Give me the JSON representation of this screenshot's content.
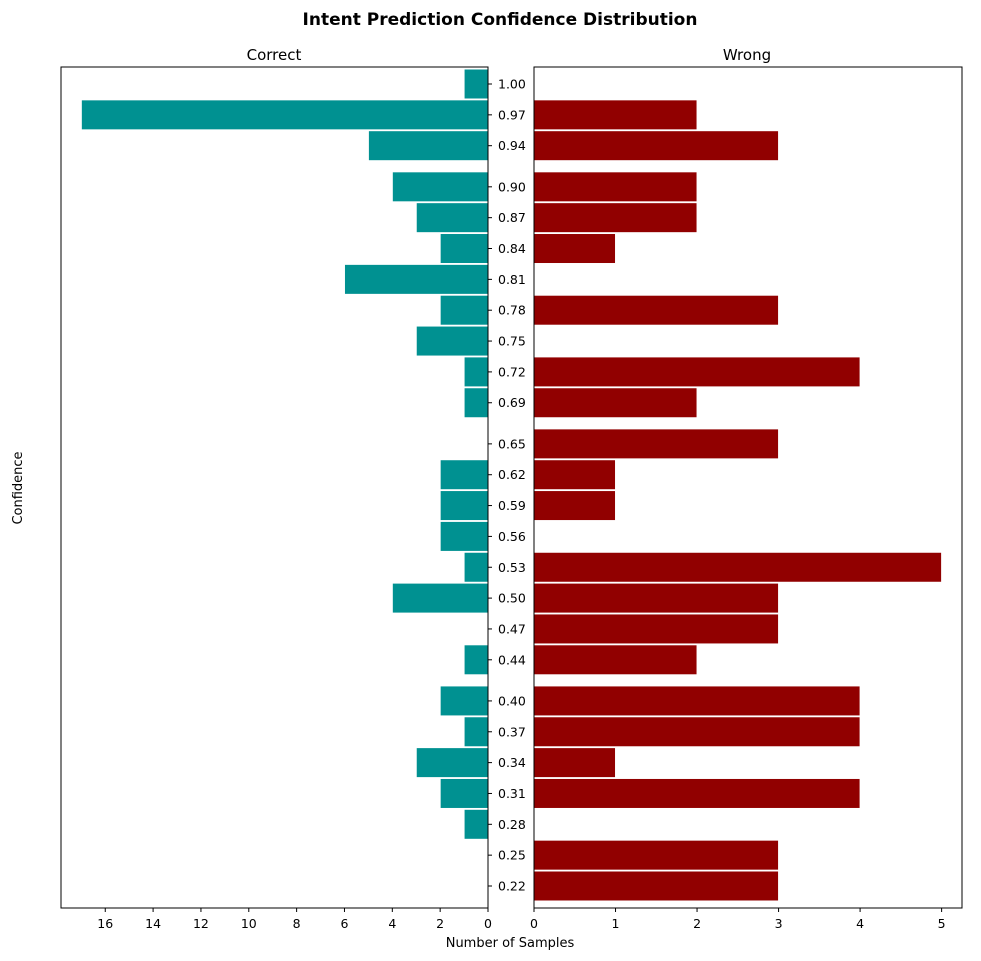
{
  "chart_data": {
    "type": "bar",
    "orientation": "horizontal",
    "title": "Intent Prediction Confidence Distribution",
    "ylabel": "Confidence",
    "xlabel": "Number of Samples",
    "panels": {
      "correct": {
        "title": "Correct",
        "color": "#009191",
        "xlim": [
          0,
          17.85
        ],
        "ticks": [
          0,
          2,
          4,
          6,
          8,
          10,
          12,
          14,
          16
        ]
      },
      "wrong": {
        "title": "Wrong",
        "color": "#910000",
        "xlim": [
          0,
          5.25
        ],
        "ticks": [
          0,
          1,
          2,
          3,
          4,
          5
        ]
      }
    },
    "categories": [
      "1.00",
      "0.97",
      "0.94",
      "0.90",
      "0.87",
      "0.84",
      "0.81",
      "0.78",
      "0.75",
      "0.72",
      "0.69",
      "0.65",
      "0.62",
      "0.59",
      "0.56",
      "0.53",
      "0.50",
      "0.47",
      "0.44",
      "0.40",
      "0.37",
      "0.34",
      "0.31",
      "0.28",
      "0.25",
      "0.22"
    ],
    "series": [
      {
        "name": "Correct",
        "values": [
          1,
          17,
          5,
          4,
          3,
          2,
          6,
          2,
          3,
          1,
          1,
          0,
          2,
          2,
          2,
          1,
          4,
          0,
          1,
          2,
          1,
          3,
          2,
          1,
          0,
          0
        ]
      },
      {
        "name": "Wrong",
        "values": [
          0,
          2,
          3,
          2,
          2,
          1,
          0,
          3,
          0,
          4,
          2,
          3,
          1,
          1,
          0,
          5,
          3,
          3,
          2,
          4,
          4,
          1,
          4,
          0,
          3,
          3
        ]
      }
    ],
    "grid": false,
    "legend": "none"
  }
}
